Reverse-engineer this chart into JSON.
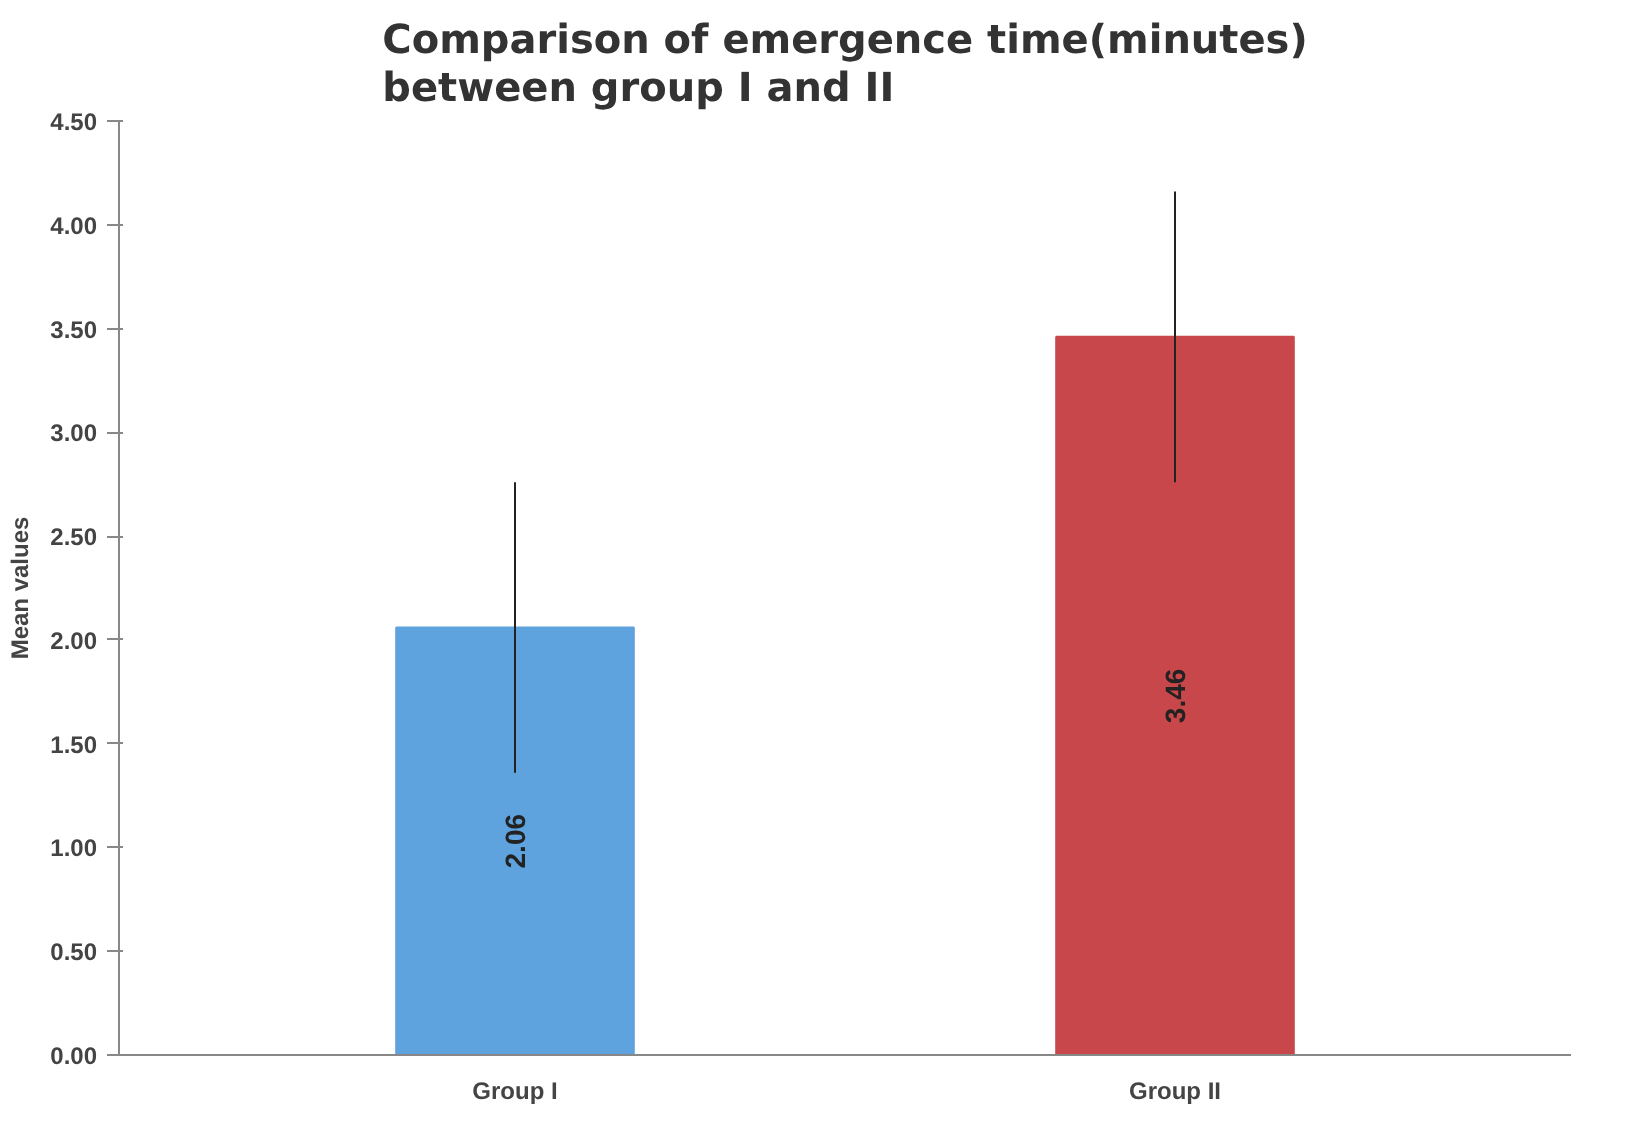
{
  "chart_data": {
    "type": "bar",
    "title": "Comparison of emergence time(minutes)\nbetween group I and II",
    "ylabel": "Mean values",
    "categories": [
      "Group I",
      "Group II"
    ],
    "values": [
      2.06,
      3.46
    ],
    "colors": [
      "#5ea2de",
      "#c8474a"
    ],
    "errors": [
      0.7,
      0.7
    ],
    "data_labels": true,
    "grid": false,
    "ylim": [
      0,
      4.5
    ],
    "yticks": [
      {
        "value": 0,
        "label": "0.00"
      },
      {
        "value": 0.5,
        "label": "0.50"
      },
      {
        "value": 1,
        "label": "1.00"
      },
      {
        "value": 1.5,
        "label": "1.50"
      },
      {
        "value": 2,
        "label": "2.00"
      },
      {
        "value": 2.5,
        "label": "2.50"
      },
      {
        "value": 3,
        "label": "3.00"
      },
      {
        "value": 3.5,
        "label": "3.50"
      },
      {
        "value": 4,
        "label": "4.00"
      },
      {
        "value": 4.5,
        "label": "4.50"
      }
    ]
  }
}
